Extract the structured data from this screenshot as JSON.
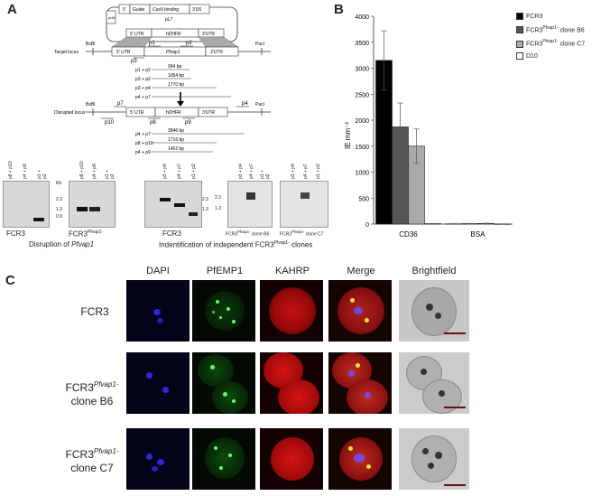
{
  "panels": {
    "a": "A",
    "b": "B",
    "c": "C"
  },
  "panel_a": {
    "plasmid": {
      "name": "pL7",
      "blocks": [
        "pU6",
        "5'",
        "Guide",
        "Cas9 binding",
        "3'U6"
      ],
      "utr5": "5' UTR",
      "marker": "hDHFR",
      "utr3": "3'UTR"
    },
    "target": {
      "label": "Target locus",
      "bsbi": "BsBI",
      "paci": "PacI",
      "gene": "Pfvap1",
      "utr5": "5' UTR",
      "utr3": "3'UTR",
      "primers": [
        "p1",
        "p2",
        "p3"
      ]
    },
    "target_amplicons": [
      {
        "pair": "p1 + p2",
        "size": "994 bp"
      },
      {
        "pair": "p3 + p2",
        "size": "1054 bp"
      },
      {
        "pair": "p3 + p4",
        "size": "1770 bp"
      },
      {
        "pair": "p4 + p7",
        "size": ""
      }
    ],
    "disrupted": {
      "label": "Disrupted locus",
      "bsbi": "BsBI",
      "paci": "PacI",
      "utr5": "5' UTR",
      "marker": "hDHFR",
      "utr3": "3'UTR",
      "primers": [
        "p7",
        "p10",
        "p8",
        "p9",
        "p4"
      ]
    },
    "disrupted_amplicons": [
      {
        "pair": "p4 + p7",
        "size": "2846 bp"
      },
      {
        "pair": "p8 + p10",
        "size": "1716 bp"
      },
      {
        "pair": "p4 + p9",
        "size": "1452 bp"
      }
    ],
    "gels": {
      "gel1": {
        "lanes": [
          "p8 + p10",
          "p4 + p9",
          "p1 + p2"
        ],
        "caption": "FCR3"
      },
      "gel2": {
        "lanes": [
          "p8 + p10",
          "p4 + p9",
          "p1 + p2"
        ],
        "kb": "Kb",
        "marks": [
          "2.3",
          "1.3",
          "0.9"
        ],
        "caption": "FCR3",
        "sup": "Pfvap1-"
      },
      "gel3": {
        "lanes": [
          "p3 + p4",
          "p4 + p7",
          "p1 + p2"
        ],
        "marks": [
          "2.3",
          "1.3"
        ],
        "caption": "FCR3"
      },
      "gel4": {
        "lanes": [
          "p3 + p4",
          "p4 + p7",
          "p1 + p2"
        ],
        "marks": [
          "2.3",
          "1.3"
        ],
        "caption": "FCR3",
        "sup": "Pfvap1-",
        "clone": "clone B6"
      },
      "gel5": {
        "lanes": [
          "p3 + p4",
          "p4 + p7",
          "p1 + p2"
        ],
        "caption": "FCR3",
        "sup": "Pfvap1-",
        "clone": "clone C7"
      }
    },
    "caption_left_pre": "Disruption of ",
    "caption_left_gene": "Pfvap1",
    "caption_right_pre": "Indentification of independent FCR3",
    "caption_right_sup": "Pfvap1-",
    "caption_right_post": " clones"
  },
  "chart_data": {
    "type": "bar",
    "categories": [
      "CD36",
      "BSA"
    ],
    "ylabel": "IE mm⁻²",
    "ylim": [
      0,
      4000
    ],
    "yticks": [
      0,
      500,
      1000,
      1500,
      2000,
      2500,
      3000,
      3500,
      4000
    ],
    "series": [
      {
        "name": "FCR3",
        "values": [
          3150,
          5
        ],
        "errors": [
          570,
          3
        ],
        "color": "#000000"
      },
      {
        "name": "FCR3Pfvap1- clone B6",
        "values": [
          1870,
          8
        ],
        "errors": [
          460,
          4
        ],
        "color": "#555555"
      },
      {
        "name": "FCR3Pfvap1- clone C7",
        "values": [
          1500,
          12
        ],
        "errors": [
          330,
          6
        ],
        "color": "#aaaaaa"
      },
      {
        "name": "D10",
        "values": [
          8,
          3
        ],
        "errors": [
          3,
          2
        ],
        "color": "#ffffff"
      }
    ],
    "legend_position": "top-right"
  },
  "legend": [
    {
      "pre": "FCR3",
      "sup": "",
      "post": ""
    },
    {
      "pre": "FCR3",
      "sup": "Pfvap1-",
      "post": " clone B6"
    },
    {
      "pre": "FCR3",
      "sup": "Pfvap1-",
      "post": " clone C7"
    },
    {
      "pre": "D10",
      "sup": "",
      "post": ""
    }
  ],
  "panel_c": {
    "columns": [
      "DAPI",
      "PfEMP1",
      "KAHRP",
      "Merge",
      "Brightfield"
    ],
    "rows": [
      {
        "line1": "FCR3",
        "sup": "",
        "line2": ""
      },
      {
        "line1": "FCR3",
        "sup": "Pfvap1-",
        "line2": "clone B6"
      },
      {
        "line1": "FCR3",
        "sup": "Pfvap1-",
        "line2": "clone C7"
      }
    ]
  }
}
